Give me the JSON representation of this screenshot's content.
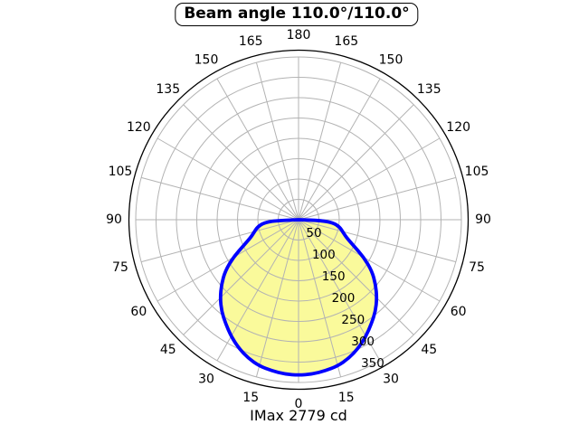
{
  "chart_data": {
    "type": "polar",
    "title": "Beam angle 110.0°/110.0°",
    "caption": "IMax 2779 cd",
    "imax_cd": 2779,
    "beam_angle": "110.0°/110.0°",
    "angle_ticks_deg": [
      0,
      15,
      30,
      45,
      60,
      75,
      90,
      105,
      120,
      135,
      150,
      165,
      180
    ],
    "angle_tick_labels": [
      "0",
      "15",
      "30",
      "45",
      "60",
      "75",
      "90",
      "105",
      "120",
      "135",
      "150",
      "165",
      "180"
    ],
    "r_ticks": [
      50,
      100,
      150,
      200,
      250,
      300,
      350
    ],
    "r_tick_labels": [
      "50",
      "100",
      "150",
      "200",
      "250",
      "300",
      "350"
    ],
    "r_max": 400,
    "grid": true,
    "angle_grid_step_deg": 15,
    "fill_color": "#fafa9b",
    "curve_color": "#0000ff",
    "grid_color": "#b3b3b3",
    "ring_color": "#000000",
    "series": [
      {
        "name": "luminous-intensity-curve",
        "angles_deg": [
          -90,
          -88,
          -85,
          -80,
          -75,
          -70,
          -65,
          -60,
          -55,
          -50,
          -45,
          -40,
          -35,
          -30,
          -25,
          -20,
          -15,
          -10,
          -5,
          0,
          5,
          10,
          15,
          20,
          25,
          30,
          35,
          40,
          45,
          50,
          55,
          60,
          65,
          70,
          75,
          80,
          85,
          88,
          90
        ],
        "values": [
          0,
          55,
          85,
          102,
          112,
          124,
          148,
          185,
          220,
          247,
          272,
          294,
          312,
          331,
          348,
          362,
          372,
          377,
          381,
          382,
          381,
          377,
          372,
          362,
          348,
          331,
          312,
          294,
          272,
          247,
          220,
          185,
          148,
          124,
          112,
          102,
          85,
          55,
          0
        ]
      }
    ]
  }
}
